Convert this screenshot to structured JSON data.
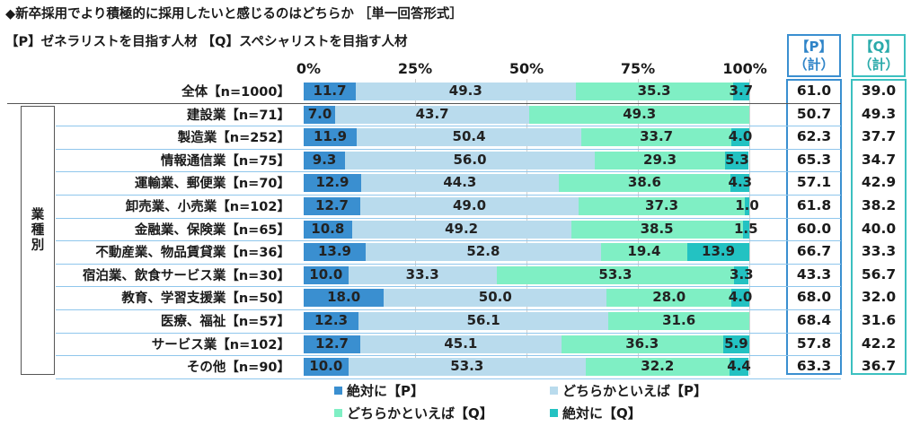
{
  "title": "◆新卒採用でより積極的に採用したいと感じるのはどちらか ［単一回答形式］",
  "subtitle": "【P】ゼネラリストを目指す人材 【Q】スペシャリストを目指す人材",
  "group_label": "業種別",
  "headers": {
    "p": [
      "【P】",
      "（計）"
    ],
    "q": [
      "【Q】",
      "（計）"
    ]
  },
  "colors": {
    "p_strong": "#3a8fd0",
    "p_weak": "#b9dbed",
    "q_weak": "#7fefc4",
    "q_strong": "#23c2c2",
    "p_border": "#3a8fd0",
    "q_border": "#3cc0c0"
  },
  "chart_data": {
    "type": "bar",
    "orientation": "horizontal",
    "stacked": true,
    "x_ticks": [
      "0%",
      "25%",
      "50%",
      "75%",
      "100%"
    ],
    "xlim": [
      0,
      100
    ],
    "legend_position": "bottom",
    "series": [
      {
        "name": "絶対に【P】",
        "color": "#3a8fd0"
      },
      {
        "name": "どちらかといえば【P】",
        "color": "#b9dbed"
      },
      {
        "name": "どちらかといえば【Q】",
        "color": "#7fefc4"
      },
      {
        "name": "絶対に【Q】",
        "color": "#23c2c2"
      }
    ],
    "rows": [
      {
        "label": "全体【n=1000】",
        "values": [
          11.7,
          49.3,
          35.3,
          3.7
        ],
        "p_total": "61.0",
        "q_total": "39.0"
      },
      {
        "label": "建設業【n=71】",
        "values": [
          7.0,
          43.7,
          49.3,
          0
        ],
        "p_total": "50.7",
        "q_total": "49.3"
      },
      {
        "label": "製造業【n=252】",
        "values": [
          11.9,
          50.4,
          33.7,
          4.0
        ],
        "p_total": "62.3",
        "q_total": "37.7"
      },
      {
        "label": "情報通信業【n=75】",
        "values": [
          9.3,
          56.0,
          29.3,
          5.3
        ],
        "p_total": "65.3",
        "q_total": "34.7"
      },
      {
        "label": "運輸業、郵便業【n=70】",
        "values": [
          12.9,
          44.3,
          38.6,
          4.3
        ],
        "p_total": "57.1",
        "q_total": "42.9"
      },
      {
        "label": "卸売業、小売業【n=102】",
        "values": [
          12.7,
          49.0,
          37.3,
          1.0
        ],
        "p_total": "61.8",
        "q_total": "38.2"
      },
      {
        "label": "金融業、保険業【n=65】",
        "values": [
          10.8,
          49.2,
          38.5,
          1.5
        ],
        "p_total": "60.0",
        "q_total": "40.0"
      },
      {
        "label": "不動産業、物品賃貸業【n=36】",
        "values": [
          13.9,
          52.8,
          19.4,
          13.9
        ],
        "p_total": "66.7",
        "q_total": "33.3"
      },
      {
        "label": "宿泊業、飲食サービス業【n=30】",
        "values": [
          10.0,
          33.3,
          53.3,
          3.3
        ],
        "p_total": "43.3",
        "q_total": "56.7"
      },
      {
        "label": "教育、学習支援業【n=50】",
        "values": [
          18.0,
          50.0,
          28.0,
          4.0
        ],
        "p_total": "68.0",
        "q_total": "32.0"
      },
      {
        "label": "医療、福祉【n=57】",
        "values": [
          12.3,
          56.1,
          31.6,
          0
        ],
        "p_total": "68.4",
        "q_total": "31.6"
      },
      {
        "label": "サービス業【n=102】",
        "values": [
          12.7,
          45.1,
          36.3,
          5.9
        ],
        "p_total": "57.8",
        "q_total": "42.2"
      },
      {
        "label": "その他【n=90】",
        "values": [
          10.0,
          53.3,
          32.2,
          4.4
        ],
        "p_total": "63.3",
        "q_total": "36.7"
      }
    ]
  }
}
